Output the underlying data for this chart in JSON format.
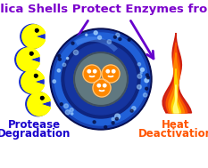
{
  "title": "Silica Shells Protect Enzymes from",
  "title_color": "#7B00CC",
  "title_fontsize": 9.5,
  "bg_color": "#FFFFFF",
  "left_label_line1": "Protease",
  "left_label_line2": "Degradation",
  "left_label_color": "#1A00CC",
  "right_label_line1": "Heat",
  "right_label_line2": "Deactivation",
  "right_label_color": "#FF5500",
  "arrow_color": "#6600CC",
  "pacman_body_color": "#FFFF00",
  "pacman_blue_color": "#1A2FCC",
  "enzyme_face_color": "#FF8800",
  "outer_shell_color_dark": "#0A1F8F",
  "outer_shell_color_mid": "#1A50D0",
  "outer_shell_color_light": "#3399FF",
  "inner_void_color": "#1A3AAA",
  "core_color": "#5A7080",
  "fig_width": 2.33,
  "fig_height": 1.89,
  "dpi": 100
}
